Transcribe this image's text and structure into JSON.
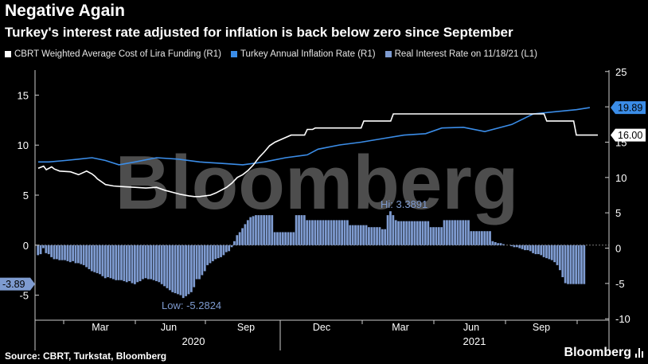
{
  "header": {
    "title": "Negative Again",
    "subtitle": "Turkey's interest rate adjusted for inflation is back below zero since September"
  },
  "legend": [
    {
      "label": "CBRT Weighted Average Cost of Lira Funding (R1)",
      "color": "#ffffff"
    },
    {
      "label": "Turkey Annual Inflation Rate (R1)",
      "color": "#3b8de8"
    },
    {
      "label": "Real Interest Rate on 11/18/21 (L1)",
      "color": "#7e9bd0"
    }
  ],
  "footer": {
    "source": "Source: CBRT, Turkstat, Bloomberg",
    "brand": "Bloomberg"
  },
  "watermark": "Bloomberg",
  "chart_data": {
    "type": "line",
    "title": "Negative Again",
    "x_ticks": [
      "Mar",
      "Jun",
      "Sep",
      "Dec",
      "Mar",
      "Jun",
      "Sep"
    ],
    "year_labels": [
      "2020",
      "2021"
    ],
    "left_axis": {
      "ticks": [
        "15",
        "10",
        "5",
        "0",
        "-5"
      ],
      "ylim": [
        -7.5,
        17.5
      ]
    },
    "right_axis": {
      "ticks": [
        "25",
        "20",
        "15",
        "10",
        "5",
        "0",
        "-5",
        "-10"
      ],
      "ylim": [
        -10.2,
        25.2
      ]
    },
    "current_labels": {
      "real_rate": "-3.89",
      "inflation": "19.89",
      "funding": "16.00"
    },
    "annotations": {
      "high": "Hi: 3.3891",
      "low": "Low: -5.2824"
    },
    "series": [
      {
        "name": "CBRT Weighted Average Cost of Lira Funding (R1)",
        "axis": "right",
        "points": [
          [
            0,
            11.3
          ],
          [
            2,
            11.6
          ],
          [
            3,
            11.1
          ],
          [
            5,
            11.5
          ],
          [
            6,
            11.2
          ],
          [
            8,
            10.9
          ],
          [
            12,
            10.8
          ],
          [
            15,
            10.4
          ],
          [
            18,
            10.9
          ],
          [
            20,
            10.5
          ],
          [
            21,
            10.2
          ],
          [
            22,
            9.8
          ],
          [
            25,
            9.0
          ],
          [
            28,
            8.8
          ],
          [
            32,
            8.7
          ],
          [
            36,
            8.6
          ],
          [
            40,
            8.5
          ],
          [
            44,
            8.6
          ],
          [
            47,
            8.2
          ],
          [
            50,
            7.9
          ],
          [
            53,
            7.6
          ],
          [
            56,
            7.4
          ],
          [
            58,
            7.3
          ],
          [
            60,
            7.3
          ],
          [
            62,
            7.4
          ],
          [
            64,
            7.5
          ],
          [
            66,
            7.8
          ],
          [
            68,
            8.2
          ],
          [
            70,
            8.6
          ],
          [
            72,
            9.2
          ],
          [
            74,
            10.0
          ],
          [
            76,
            10.4
          ],
          [
            78,
            11.0
          ],
          [
            80,
            11.8
          ],
          [
            82,
            12.8
          ],
          [
            84,
            13.6
          ],
          [
            86,
            14.5
          ],
          [
            88,
            15.0
          ],
          [
            91,
            15.5
          ],
          [
            94,
            16.0
          ],
          [
            97,
            16.0
          ],
          [
            99,
            16.0
          ],
          [
            100,
            16.8
          ],
          [
            102,
            16.8
          ],
          [
            103,
            17.0
          ],
          [
            120,
            17.0
          ],
          [
            121,
            18.0
          ],
          [
            131,
            18.0
          ],
          [
            132,
            19.0
          ],
          [
            168,
            19.0
          ],
          [
            169,
            19.0
          ],
          [
            188,
            19.0
          ],
          [
            189,
            18.0
          ],
          [
            199,
            18.0
          ],
          [
            200,
            16.0
          ],
          [
            208,
            16.0
          ]
        ]
      },
      {
        "name": "Turkey Annual Inflation Rate (R1)",
        "axis": "right",
        "points": [
          [
            0,
            12.2
          ],
          [
            4,
            12.2
          ],
          [
            10,
            12.4
          ],
          [
            15,
            12.6
          ],
          [
            20,
            12.8
          ],
          [
            25,
            12.4
          ],
          [
            30,
            11.8
          ],
          [
            36,
            12.2
          ],
          [
            44,
            12.8
          ],
          [
            52,
            12.6
          ],
          [
            60,
            12.2
          ],
          [
            68,
            12.0
          ],
          [
            76,
            11.8
          ],
          [
            84,
            12.2
          ],
          [
            92,
            12.8
          ],
          [
            100,
            13.2
          ],
          [
            104,
            14.0
          ],
          [
            112,
            14.6
          ],
          [
            120,
            15.0
          ],
          [
            128,
            15.5
          ],
          [
            136,
            16.0
          ],
          [
            144,
            16.2
          ],
          [
            150,
            17.0
          ],
          [
            158,
            17.1
          ],
          [
            166,
            16.5
          ],
          [
            176,
            17.5
          ],
          [
            184,
            19.0
          ],
          [
            192,
            19.3
          ],
          [
            200,
            19.6
          ],
          [
            205,
            19.89
          ]
        ]
      },
      {
        "name": "Real Interest Rate on 11/18/21 (L1)",
        "axis": "left",
        "type": "bar",
        "values": [
          -1.0,
          -0.9,
          -0.3,
          -0.8,
          -0.9,
          -1.2,
          -1.4,
          -1.4,
          -1.5,
          -1.5,
          -1.5,
          -1.6,
          -1.7,
          -1.6,
          -1.8,
          -1.8,
          -1.9,
          -2.0,
          -2.2,
          -2.4,
          -2.6,
          -2.7,
          -2.8,
          -2.9,
          -3.1,
          -3.3,
          -3.2,
          -3.3,
          -3.4,
          -3.5,
          -3.5,
          -3.5,
          -3.6,
          -3.7,
          -3.6,
          -3.8,
          -3.9,
          -3.7,
          -3.6,
          -3.4,
          -3.3,
          -3.4,
          -3.4,
          -3.5,
          -3.6,
          -3.7,
          -3.9,
          -4.1,
          -4.3,
          -4.5,
          -4.7,
          -4.8,
          -4.9,
          -5.0,
          -5.28,
          -5.1,
          -4.9,
          -4.7,
          -4.2,
          -3.4,
          -3.4,
          -3.0,
          -2.6,
          -2.0,
          -1.8,
          -1.6,
          -1.4,
          -1.3,
          -1.2,
          -1.0,
          -0.7,
          -0.6,
          -0.2,
          0.4,
          1.0,
          1.3,
          1.7,
          2.1,
          2.5,
          2.8,
          2.9,
          3.0,
          3.0,
          3.0,
          3.0,
          3.0,
          3.0,
          3.0,
          1.3,
          1.3,
          1.3,
          1.3,
          1.3,
          1.3,
          1.3,
          1.3,
          3.0,
          3.0,
          3.0,
          3.0,
          2.5,
          2.5,
          2.5,
          2.5,
          2.5,
          2.5,
          2.5,
          2.5,
          2.5,
          2.5,
          2.5,
          2.5,
          2.5,
          2.5,
          2.5,
          2.5,
          2.0,
          2.0,
          2.0,
          2.0,
          2.0,
          2.0,
          2.0,
          1.8,
          1.8,
          1.8,
          1.8,
          1.8,
          1.6,
          1.6,
          3.0,
          3.39,
          3.0,
          2.5,
          2.4,
          2.4,
          2.4,
          2.4,
          2.4,
          2.4,
          2.4,
          2.4,
          2.4,
          2.4,
          2.4,
          2.4,
          1.8,
          1.8,
          1.8,
          1.8,
          1.8,
          2.5,
          2.5,
          2.5,
          2.5,
          2.5,
          2.5,
          2.5,
          2.5,
          2.5,
          2.5,
          1.4,
          1.4,
          1.4,
          1.4,
          1.4,
          1.4,
          1.4,
          1.4,
          0.4,
          0.3,
          0.2,
          0.2,
          0.1,
          0.0,
          0.0,
          -0.1,
          -0.2,
          -0.2,
          -0.3,
          -0.4,
          -0.5,
          -0.5,
          -0.6,
          -0.8,
          -0.9,
          -0.9,
          -1.0,
          -1.2,
          -1.3,
          -1.4,
          -1.5,
          -1.7,
          -2.0,
          -2.5,
          -3.2,
          -3.8,
          -3.89,
          -3.89,
          -3.89,
          -3.89,
          -3.89,
          -3.89,
          -3.89
        ]
      }
    ]
  }
}
